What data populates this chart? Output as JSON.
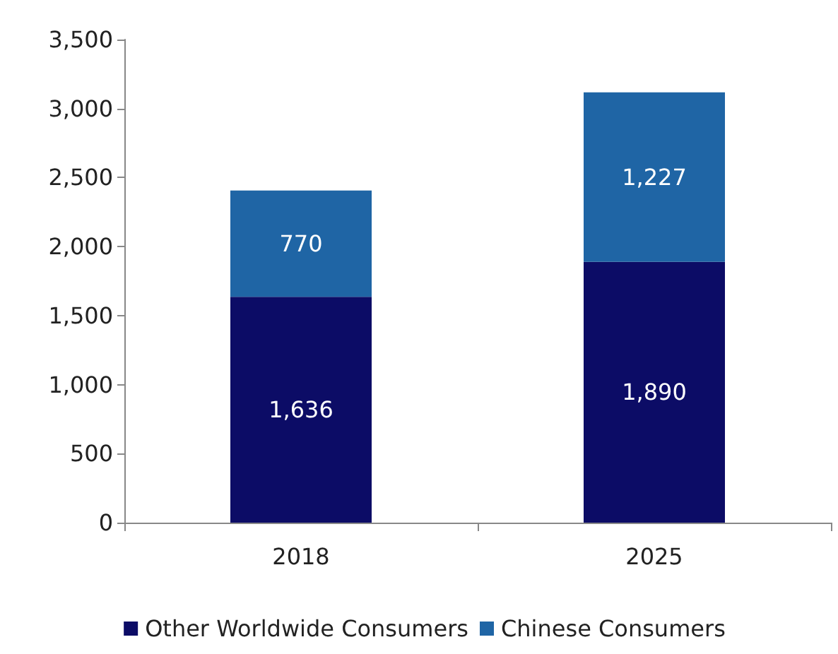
{
  "chart_data": {
    "type": "bar",
    "stacked": true,
    "categories": [
      "2018",
      "2025"
    ],
    "series": [
      {
        "name": "Other Worldwide Consumers",
        "color": "#0c0c66",
        "values": [
          1636,
          1890
        ],
        "value_labels": [
          "1,636",
          "1,890"
        ]
      },
      {
        "name": "Chinese Consumers",
        "color": "#1f65a5",
        "values": [
          770,
          1227
        ],
        "value_labels": [
          "770",
          "1,227"
        ]
      }
    ],
    "ylim": [
      0,
      3500
    ],
    "yticks": [
      {
        "value": 0,
        "label": "0"
      },
      {
        "value": 500,
        "label": "500"
      },
      {
        "value": 1000,
        "label": "1,000"
      },
      {
        "value": 1500,
        "label": "1,500"
      },
      {
        "value": 2000,
        "label": "2,000"
      },
      {
        "value": 2500,
        "label": "2,500"
      },
      {
        "value": 3000,
        "label": "3,000"
      },
      {
        "value": 3500,
        "label": "3,500"
      }
    ],
    "legend": "bottom",
    "grid": false
  }
}
